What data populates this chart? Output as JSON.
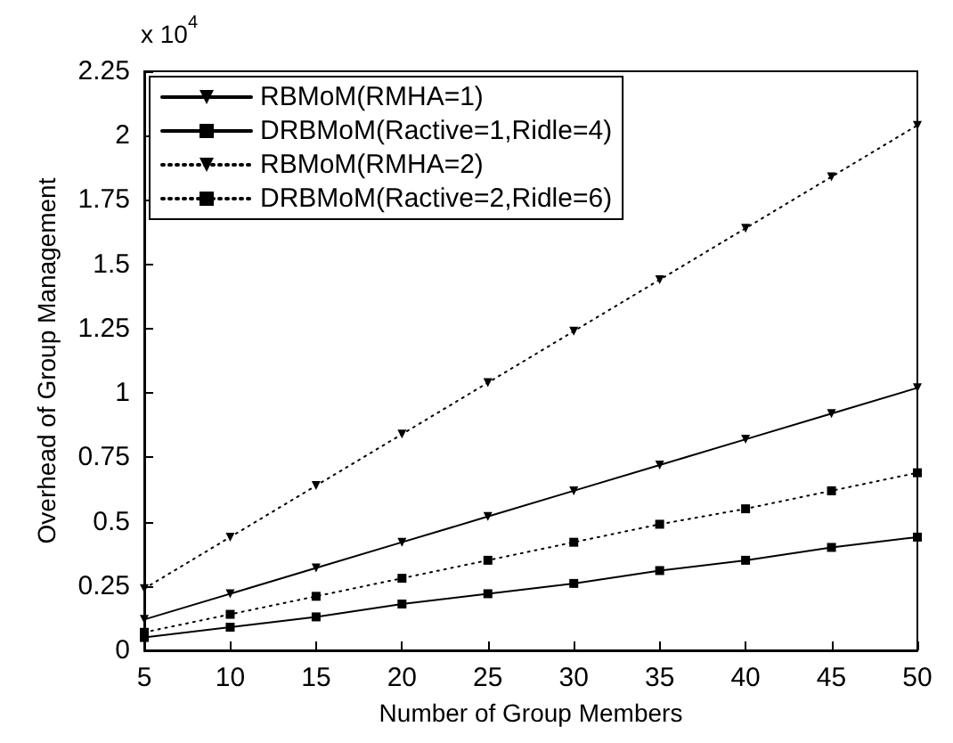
{
  "chart_data": {
    "type": "line",
    "xlabel": "Number of Group Members",
    "ylabel": "Overhead of Group Management",
    "annotations": [
      "x 10$^{4}$"
    ],
    "x": [
      5,
      10,
      15,
      20,
      25,
      30,
      35,
      40,
      45,
      50
    ],
    "series": [
      {
        "name": "RBMoM(RMHA=1)",
        "color": "#000000",
        "marker": "triangle",
        "line_style": "solid",
        "values": [
          0.12,
          0.22,
          0.32,
          0.42,
          0.52,
          0.62,
          0.72,
          0.82,
          0.92,
          1.02
        ]
      },
      {
        "name": "DRBMoM(Ractive=1,Ridle=4)",
        "color": "#000000",
        "marker": "square",
        "line_style": "solid",
        "values": [
          0.05,
          0.09,
          0.13,
          0.18,
          0.22,
          0.26,
          0.31,
          0.35,
          0.4,
          0.44
        ]
      },
      {
        "name": "RBMoM(RMHA=2)",
        "color": "#000000",
        "marker": "triangle",
        "line_style": "dotted",
        "values": [
          0.24,
          0.44,
          0.64,
          0.84,
          1.04,
          1.24,
          1.44,
          1.64,
          1.84,
          2.04
        ]
      },
      {
        "name": "DRBMoM(Ractive=2,Ridle=6)",
        "color": "#000000",
        "marker": "square",
        "line_style": "dotted",
        "values": [
          0.07,
          0.14,
          0.21,
          0.28,
          0.35,
          0.42,
          0.49,
          0.55,
          0.62,
          0.69
        ]
      }
    ],
    "xlim": [
      5,
      50
    ],
    "xticks": [
      5,
      10,
      15,
      20,
      25,
      30,
      35,
      40,
      45,
      50
    ],
    "ylim": [
      0,
      2.25
    ],
    "yticks": [
      0,
      0.25,
      0.5,
      0.75,
      1,
      1.25,
      1.5,
      1.75,
      2,
      2.25
    ],
    "grid": false,
    "legend": "top left"
  }
}
